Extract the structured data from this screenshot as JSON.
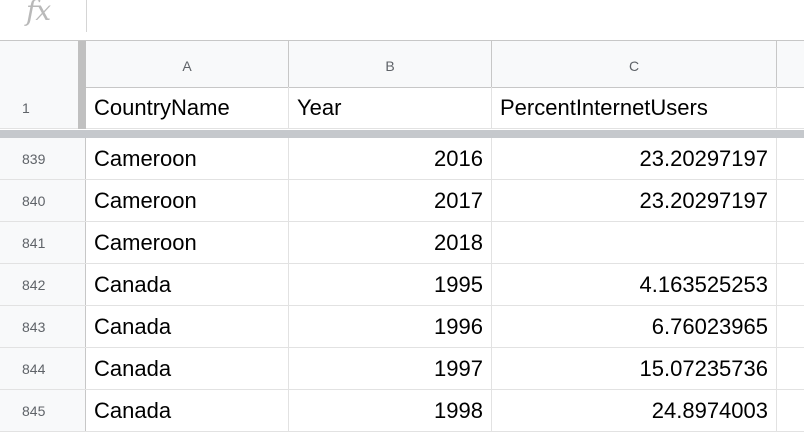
{
  "formula_bar": {
    "fx_label": "fx",
    "value": ""
  },
  "columns": [
    "A",
    "B",
    "C"
  ],
  "header_row": {
    "row_number": "1",
    "cells": [
      "CountryName",
      "Year",
      "PercentInternetUsers"
    ]
  },
  "rows": [
    {
      "row_number": "839",
      "country": "Cameroon",
      "year": "2016",
      "percent": "23.20297197"
    },
    {
      "row_number": "840",
      "country": "Cameroon",
      "year": "2017",
      "percent": "23.20297197"
    },
    {
      "row_number": "841",
      "country": "Cameroon",
      "year": "2018",
      "percent": ""
    },
    {
      "row_number": "842",
      "country": "Canada",
      "year": "1995",
      "percent": "4.163525253"
    },
    {
      "row_number": "843",
      "country": "Canada",
      "year": "1996",
      "percent": "6.76023965"
    },
    {
      "row_number": "844",
      "country": "Canada",
      "year": "1997",
      "percent": "15.07235736"
    },
    {
      "row_number": "845",
      "country": "Canada",
      "year": "1998",
      "percent": "24.8974003"
    }
  ]
}
